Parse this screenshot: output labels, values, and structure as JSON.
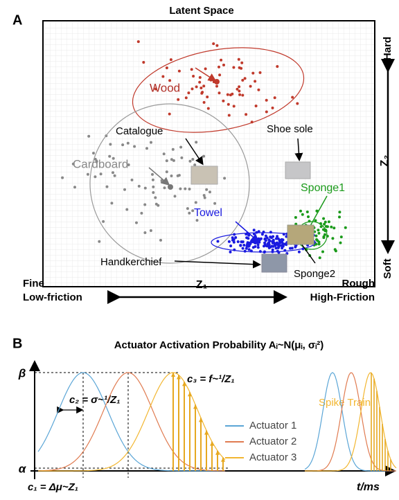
{
  "panel_a": {
    "label": "A",
    "title": "Latent Space",
    "materials": {
      "wood": "Wood",
      "catalogue": "Catalogue",
      "shoe_sole": "Shoe sole",
      "cardboard": "Cardboard",
      "towel": "Towel",
      "sponge1": "Sponge1",
      "sponge2": "Sponge2",
      "handkerchief": "Handkerchief"
    },
    "y_axis": {
      "top": "Hard",
      "label": "Z₂",
      "bottom": "Soft"
    },
    "x_axis": {
      "left_top": "Fine",
      "left_bottom": "Low-friction",
      "label": "Z₁",
      "right_top": "Rough",
      "right_bottom": "High-Friction"
    }
  },
  "panel_b": {
    "label": "B",
    "title": "Actuator Activation Probability Aᵢ~N(μᵢ, σᵢ²)",
    "beta": "β",
    "alpha": "α",
    "c1": "c₁ = Δμ~Z₁",
    "c2": "c₂ = σ~¹/Z₁",
    "c3": "c₃ = f~¹/Z₁",
    "spike_train": "Spike Train",
    "x_label": "t/ms",
    "legend": [
      "Actuator 1",
      "Actuator 2",
      "Actuator 3"
    ]
  }
}
